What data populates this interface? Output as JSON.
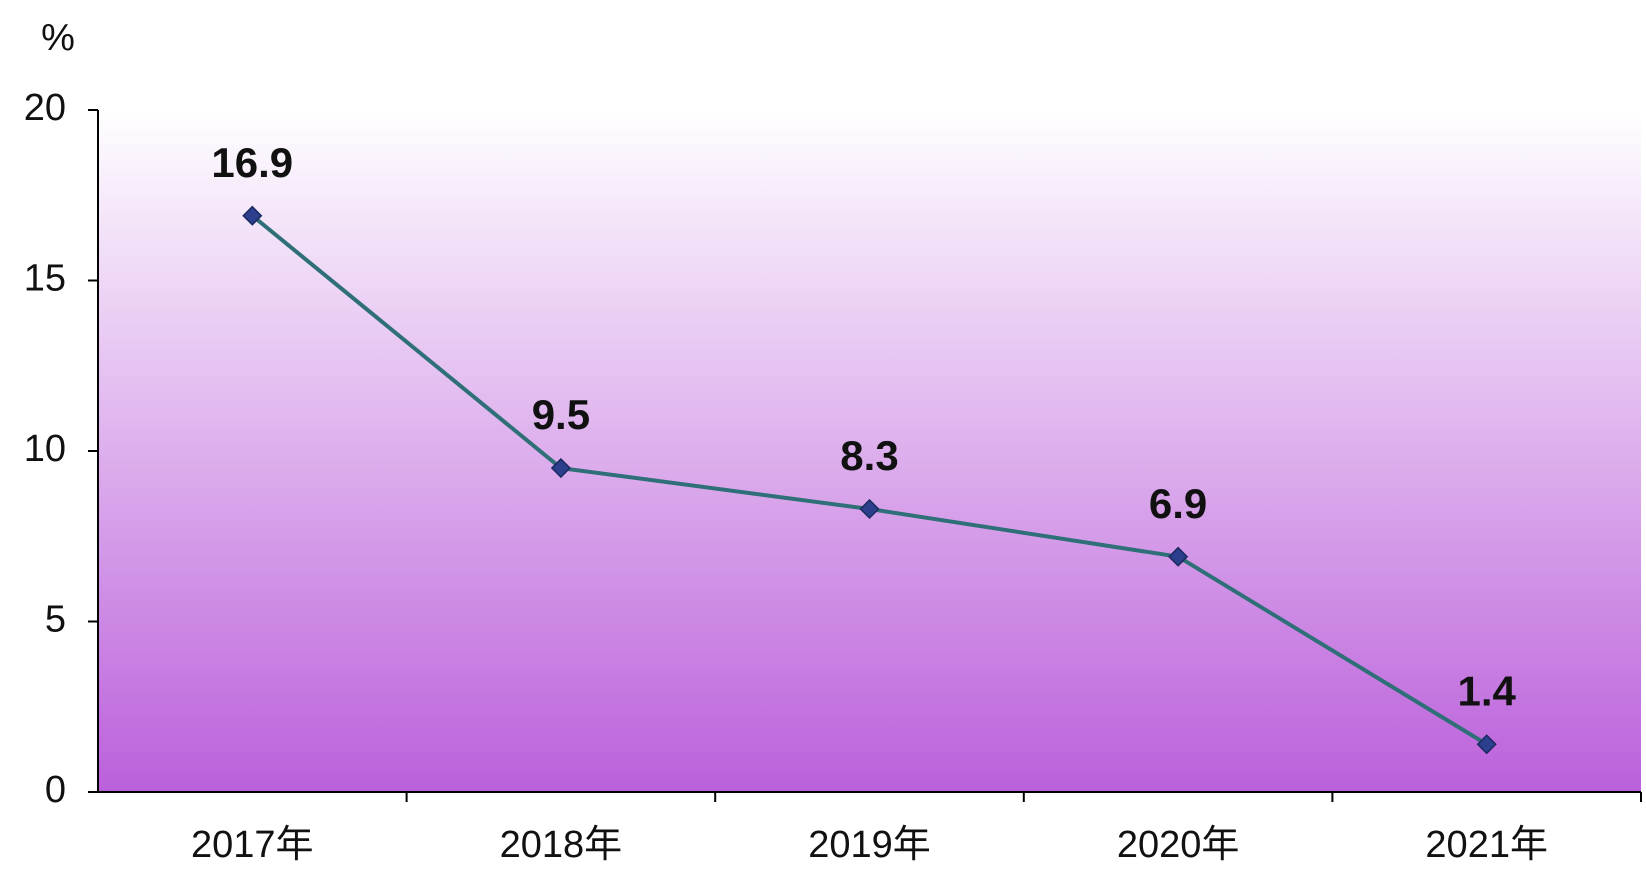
{
  "chart_data": {
    "type": "line",
    "y_axis_label": "%",
    "categories": [
      "2017年",
      "2018年",
      "2019年",
      "2020年",
      "2021年"
    ],
    "series": [
      {
        "name": null,
        "color": "#2f6f78",
        "marker_color": "#2c3f8c",
        "values": [
          16.9,
          9.5,
          8.3,
          6.9,
          1.4
        ]
      }
    ],
    "ylim": [
      0,
      20
    ],
    "yticks": [
      0,
      5,
      10,
      15,
      20
    ],
    "grid": false
  }
}
